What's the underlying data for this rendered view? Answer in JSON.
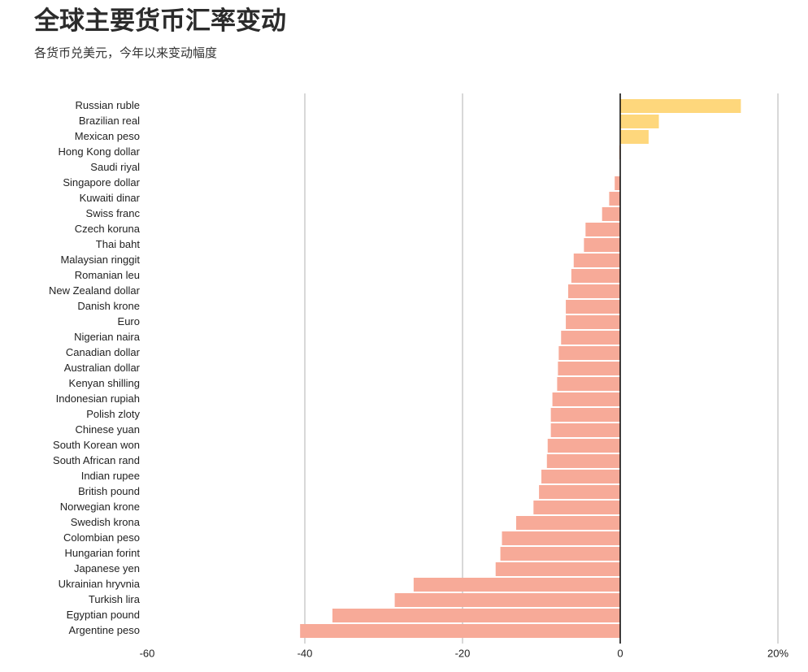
{
  "chart_data": {
    "type": "hbar",
    "title": "全球主要货币汇率变动",
    "subtitle": "各货币兑美元，今年以来变动幅度",
    "categories": [
      "Russian ruble",
      "Brazilian real",
      "Mexican peso",
      "Hong Kong dollar",
      "Saudi riyal",
      "Singapore dollar",
      "Kuwaiti dinar",
      "Swiss franc",
      "Czech koruna",
      "Thai baht",
      "Malaysian ringgit",
      "Romanian leu",
      "New Zealand dollar",
      "Danish krone",
      "Euro",
      "Nigerian naira",
      "Canadian dollar",
      "Australian dollar",
      "Kenyan shilling",
      "Indonesian rupiah",
      "Polish zloty",
      "Chinese yuan",
      "South Korean won",
      "South African rand",
      "Indian rupee",
      "British pound",
      "Norwegian krone",
      "Swedish krona",
      "Colombian peso",
      "Hungarian forint",
      "Japanese yen",
      "Ukrainian hryvnia",
      "Turkish lira",
      "Egyptian pound",
      "Argentine peso"
    ],
    "values": [
      15.3,
      4.9,
      3.6,
      -0.1,
      -0.05,
      -0.7,
      -1.4,
      -2.3,
      -4.4,
      -4.6,
      -5.9,
      -6.2,
      -6.6,
      -6.9,
      -6.9,
      -7.5,
      -7.8,
      -7.9,
      -8.0,
      -8.6,
      -8.8,
      -8.8,
      -9.2,
      -9.3,
      -10.0,
      -10.3,
      -11.0,
      -13.2,
      -15.0,
      -15.2,
      -15.8,
      -26.2,
      -28.6,
      -36.5,
      -40.6
    ],
    "positive_color": "#fed77c",
    "negative_color": "#f7aa98",
    "xlim": [
      -60,
      20
    ],
    "xticks": [
      -60,
      -40,
      -20,
      0,
      {
        "value": 20,
        "label": "20%"
      }
    ],
    "grid": true
  }
}
